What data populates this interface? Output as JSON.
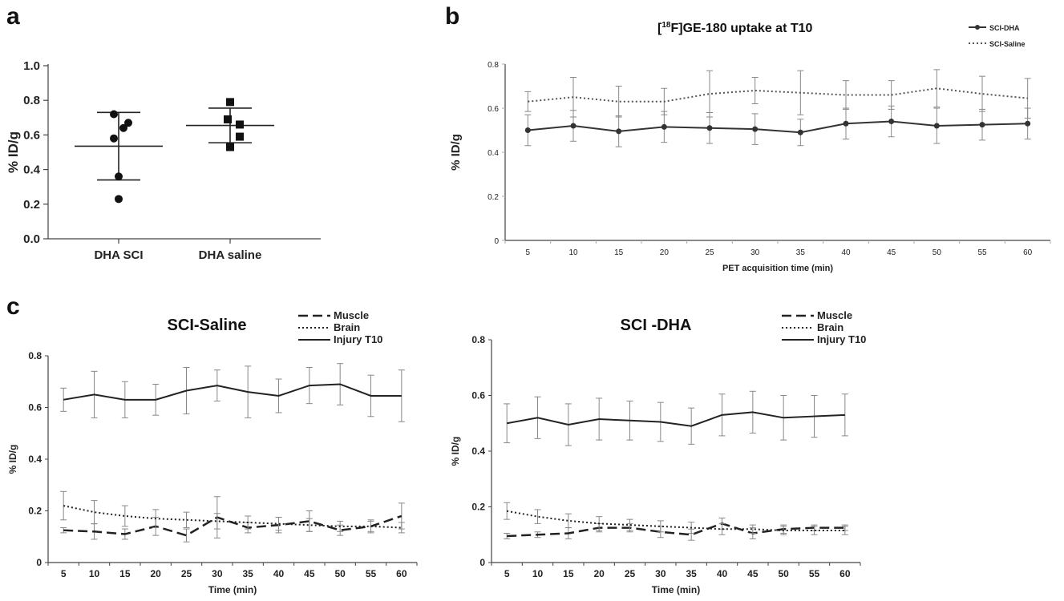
{
  "panel_labels": [
    "a",
    "b",
    "c"
  ],
  "chart_data": [
    {
      "panel": "a",
      "type": "scatter",
      "title": "",
      "xlabel": "",
      "ylabel": "% ID/g",
      "categories": [
        "DHA SCI",
        "DHA saline"
      ],
      "ylim": [
        0,
        1.0
      ],
      "yticks": [
        "0.0",
        "0.2",
        "0.4",
        "0.6",
        "0.8",
        "1.0"
      ],
      "series": [
        {
          "category": "DHA SCI",
          "marker": "circle",
          "points": [
            0.72,
            0.67,
            0.64,
            0.58,
            0.36,
            0.23
          ],
          "mean": 0.535,
          "sd_upper": 0.73,
          "sd_lower": 0.34
        },
        {
          "category": "DHA saline",
          "marker": "square",
          "points": [
            0.79,
            0.69,
            0.66,
            0.59,
            0.53
          ],
          "mean": 0.655,
          "sd_upper": 0.755,
          "sd_lower": 0.555
        }
      ]
    },
    {
      "panel": "b",
      "type": "line",
      "title": "[18F]GE-180 uptake at T10",
      "title_main": "GE-180 uptake at T10",
      "title_superscript": "18",
      "title_prefix": "[",
      "title_mid": "F]",
      "xlabel": "PET acquisition time (min)",
      "ylabel": "% ID/g",
      "x": [
        5,
        10,
        15,
        20,
        25,
        30,
        35,
        40,
        45,
        50,
        55,
        60
      ],
      "ylim": [
        0,
        0.8
      ],
      "yticks": [
        "0",
        "0.2",
        "0.4",
        "0.6",
        "0.8"
      ],
      "legend_position": "top-right",
      "series": [
        {
          "name": "SCI-DHA",
          "style": "solid-marker",
          "color": "#333333",
          "values": [
            0.5,
            0.52,
            0.495,
            0.515,
            0.51,
            0.505,
            0.49,
            0.53,
            0.54,
            0.52,
            0.525,
            0.53
          ],
          "errors": [
            0.07,
            0.07,
            0.07,
            0.07,
            0.07,
            0.07,
            0.06,
            0.07,
            0.07,
            0.08,
            0.07,
            0.07
          ]
        },
        {
          "name": "SCI-Saline",
          "style": "dotted",
          "color": "#555555",
          "values": [
            0.63,
            0.65,
            0.63,
            0.63,
            0.665,
            0.68,
            0.67,
            0.66,
            0.66,
            0.69,
            0.665,
            0.645
          ],
          "errors": [
            0.045,
            0.09,
            0.07,
            0.06,
            0.105,
            0.06,
            0.1,
            0.065,
            0.065,
            0.085,
            0.08,
            0.09
          ]
        }
      ]
    },
    {
      "panel": "c",
      "type": "line",
      "title": "SCI-Saline",
      "xlabel": "Time (min)",
      "ylabel": "% ID/g",
      "x": [
        5,
        10,
        15,
        20,
        25,
        30,
        35,
        40,
        45,
        50,
        55,
        60
      ],
      "ylim": [
        0,
        0.8
      ],
      "yticks": [
        "0",
        "0.2",
        "0.4",
        "0.6",
        "0.8"
      ],
      "legend_position": "top-right",
      "series": [
        {
          "name": "Muscle",
          "style": "dashed",
          "values": [
            0.125,
            0.12,
            0.11,
            0.14,
            0.105,
            0.175,
            0.135,
            0.145,
            0.16,
            0.125,
            0.14,
            0.18
          ],
          "errors": [
            0.01,
            0.03,
            0.02,
            0.035,
            0.025,
            0.08,
            0.02,
            0.03,
            0.04,
            0.02,
            0.025,
            0.05
          ]
        },
        {
          "name": "Brain",
          "style": "dotted",
          "values": [
            0.22,
            0.195,
            0.18,
            0.17,
            0.165,
            0.16,
            0.155,
            0.15,
            0.145,
            0.14,
            0.14,
            0.135
          ],
          "errors": [
            0.055,
            0.045,
            0.04,
            0.035,
            0.03,
            0.03,
            0.025,
            0.025,
            0.025,
            0.02,
            0.02,
            0.02
          ]
        },
        {
          "name": "Injury T10",
          "style": "solid",
          "values": [
            0.63,
            0.65,
            0.63,
            0.63,
            0.665,
            0.685,
            0.66,
            0.645,
            0.685,
            0.69,
            0.645,
            0.645
          ],
          "errors": [
            0.045,
            0.09,
            0.07,
            0.06,
            0.09,
            0.06,
            0.1,
            0.065,
            0.07,
            0.08,
            0.08,
            0.1
          ]
        }
      ]
    },
    {
      "panel": "c",
      "type": "line",
      "title": "SCI -DHA",
      "xlabel": "Time (min)",
      "ylabel": "% ID/g",
      "x": [
        5,
        10,
        15,
        20,
        25,
        30,
        35,
        40,
        45,
        50,
        55,
        60
      ],
      "ylim": [
        0,
        0.8
      ],
      "yticks": [
        "0",
        "0.2",
        "0.4",
        "0.6",
        "0.8"
      ],
      "legend_position": "top-right",
      "series": [
        {
          "name": "Muscle",
          "style": "dashed",
          "values": [
            0.095,
            0.1,
            0.105,
            0.125,
            0.125,
            0.11,
            0.1,
            0.14,
            0.105,
            0.12,
            0.125,
            0.125
          ],
          "errors": [
            0.01,
            0.01,
            0.02,
            0.015,
            0.015,
            0.02,
            0.02,
            0.02,
            0.02,
            0.015,
            0.01,
            0.01
          ]
        },
        {
          "name": "Brain",
          "style": "dotted",
          "values": [
            0.185,
            0.165,
            0.15,
            0.14,
            0.135,
            0.13,
            0.125,
            0.12,
            0.12,
            0.115,
            0.115,
            0.115
          ],
          "errors": [
            0.03,
            0.025,
            0.025,
            0.025,
            0.02,
            0.02,
            0.02,
            0.02,
            0.015,
            0.015,
            0.015,
            0.015
          ]
        },
        {
          "name": "Injury T10",
          "style": "solid",
          "values": [
            0.5,
            0.52,
            0.495,
            0.515,
            0.51,
            0.505,
            0.49,
            0.53,
            0.54,
            0.52,
            0.525,
            0.53
          ],
          "errors": [
            0.07,
            0.075,
            0.075,
            0.075,
            0.07,
            0.07,
            0.065,
            0.075,
            0.075,
            0.08,
            0.075,
            0.075
          ]
        }
      ]
    }
  ]
}
